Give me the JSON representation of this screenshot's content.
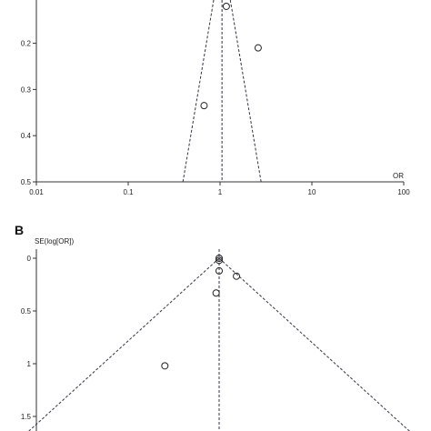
{
  "chart_data": [
    {
      "type": "scatter",
      "subtype": "funnel",
      "panel_label": "",
      "xlabel": "OR",
      "ylabel": "",
      "x_scale": "log",
      "xlim": [
        0.01,
        100
      ],
      "ylim": [
        0,
        0.5
      ],
      "x_ticks": [
        "0.01",
        "0.1",
        "1",
        "10",
        "100"
      ],
      "y_ticks": [
        "0.2",
        "0.3",
        "0.4",
        "0.5"
      ],
      "y_tick_values": [
        0.2,
        0.3,
        0.4,
        0.5
      ],
      "pooled_or": 1.05,
      "points": [
        {
          "or": 1.17,
          "se": 0.12
        },
        {
          "or": 2.6,
          "se": 0.21
        },
        {
          "or": 0.67,
          "se": 0.335
        }
      ]
    },
    {
      "type": "scatter",
      "subtype": "funnel",
      "panel_label": "B",
      "xlabel": "",
      "ylabel": "SE(log[OR])",
      "x_scale": "log",
      "ylim": [
        0,
        1.5
      ],
      "y_ticks": [
        "0",
        "0.5",
        "1",
        "1.5"
      ],
      "y_tick_values": [
        0,
        0.5,
        1,
        1.5
      ],
      "pooled_or": 1.0,
      "points": [
        {
          "or": 1.0,
          "se": 0.0
        },
        {
          "or": 1.0,
          "se": 0.02
        },
        {
          "or": 1.0,
          "se": 0.12
        },
        {
          "or": 1.34,
          "se": 0.17
        },
        {
          "or": 0.95,
          "se": 0.33
        },
        {
          "or": 0.4,
          "se": 1.02
        }
      ]
    }
  ]
}
